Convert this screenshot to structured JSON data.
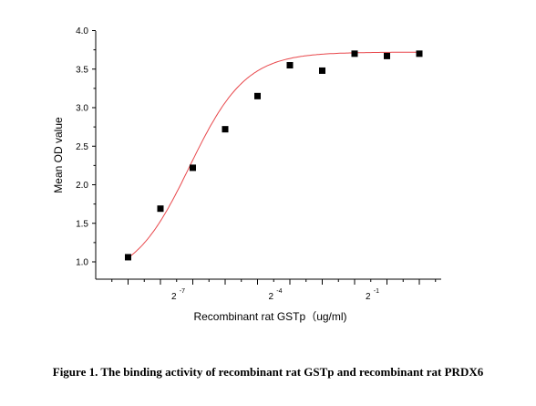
{
  "caption": "Figure 1. The binding activity of recombinant rat GSTp and recombinant rat PRDX6",
  "chart_data": {
    "type": "scatter",
    "xlabel": "Recombinant rat GSTp（ug/ml)",
    "ylabel": "Mean OD value",
    "x_scale": "log2",
    "xlim": [
      -9.7,
      -0.3
    ],
    "ylim": [
      0.8,
      4.0
    ],
    "y_ticks": [
      "1.0",
      "1.5",
      "2.0",
      "2.5",
      "3.0",
      "3.5",
      "4.0"
    ],
    "x_ticks": [
      {
        "base": "2",
        "exp": "-7"
      },
      {
        "base": "2",
        "exp": "-4"
      },
      {
        "base": "2",
        "exp": "-1"
      }
    ],
    "grid": false,
    "series": [
      {
        "marker": "square",
        "color": "#000000",
        "x_log2": [
          -8.0,
          -7.0,
          -6.0,
          -5.0,
          -4.0,
          -3.0,
          -2.0,
          -1.0,
          0.0,
          1.0
        ],
        "y": [
          1.06,
          1.69,
          2.22,
          2.72,
          3.15,
          3.55,
          3.48,
          3.7,
          3.67,
          3.7
        ]
      }
    ],
    "fit_curve": {
      "color": "#e8474b",
      "type": "sigmoidal"
    }
  }
}
